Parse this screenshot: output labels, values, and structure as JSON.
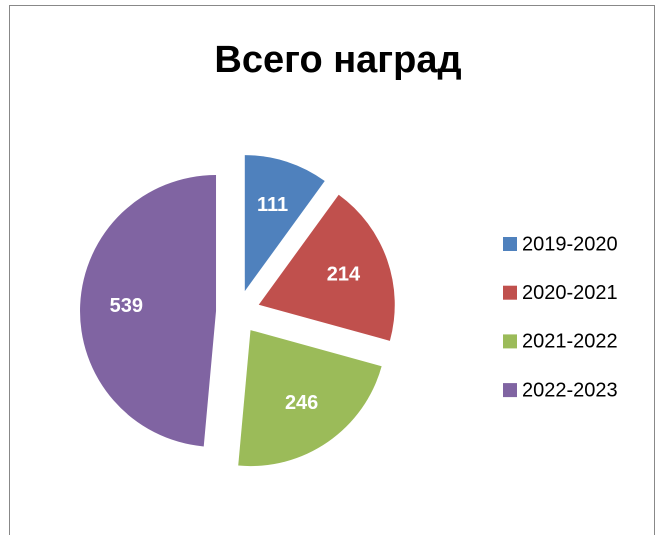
{
  "chart_data": {
    "type": "pie",
    "title": "Всего наград",
    "categories": [
      "2019-2020",
      "2020-2021",
      "2021-2022",
      "2022-2023"
    ],
    "values": [
      111,
      214,
      246,
      539
    ],
    "colors": [
      "#4f81bd",
      "#c0504d",
      "#9bbb59",
      "#8064a2"
    ],
    "exploded": true,
    "legend": "right"
  }
}
